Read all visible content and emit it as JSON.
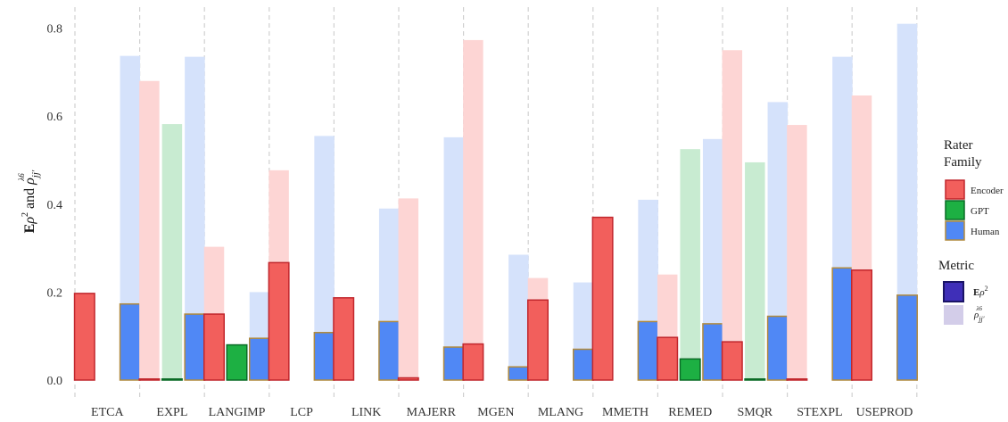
{
  "chart_data": {
    "type": "bar",
    "ylabel": "Eρ² and ρ_jj'^λ6",
    "ylim": [
      0,
      0.83
    ],
    "yticks": [
      "0.0",
      "0.2",
      "0.4",
      "0.6",
      "0.8"
    ],
    "ytick_values": [
      0,
      0.2,
      0.4,
      0.6,
      0.8
    ],
    "categories": [
      "ETCA",
      "EXPL",
      "LANGIMP",
      "LCP",
      "LINK",
      "MAJERR",
      "MGEN",
      "MLANG",
      "MMETH",
      "REMED",
      "SMQR",
      "STEXPL",
      "USEPROD"
    ],
    "series": [
      {
        "name": "Encoder",
        "fill": "#f25f5c",
        "fill_light": "#fdd5d4",
        "stroke": "#c1272d",
        "erho2": [
          0.197,
          0.0,
          0.15,
          0.267,
          0.187,
          0.005,
          0.082,
          0.182,
          0.37,
          0.097,
          0.087,
          0.0,
          0.25
        ],
        "rho": [
          null,
          0.68,
          0.303,
          0.477,
          null,
          0.413,
          0.773,
          0.232,
          null,
          0.24,
          0.75,
          0.58,
          0.647
        ]
      },
      {
        "name": "GPT",
        "fill": "#1db043",
        "fill_light": "#c8ebd1",
        "stroke": "#0a6b26",
        "erho2": [
          null,
          0.0,
          0.08,
          null,
          null,
          null,
          null,
          null,
          null,
          0.048,
          0.0,
          null,
          null
        ],
        "rho": [
          null,
          0.582,
          null,
          null,
          null,
          null,
          null,
          null,
          null,
          0.525,
          0.495,
          null,
          null
        ]
      },
      {
        "name": "Human",
        "fill": "#5088f5",
        "fill_light": "#d5e2fb",
        "stroke": "#b08a3e",
        "erho2": [
          0.173,
          0.15,
          0.095,
          0.108,
          0.133,
          0.075,
          0.03,
          0.07,
          0.133,
          0.128,
          0.145,
          0.255,
          0.193
        ],
        "rho": [
          0.737,
          0.735,
          0.2,
          0.555,
          0.39,
          0.552,
          0.285,
          0.222,
          0.41,
          0.548,
          0.632,
          0.735,
          0.81
        ]
      }
    ],
    "legend": {
      "placement": "right",
      "rater_title": "Rater\nFamily",
      "metric_title": "Metric",
      "metric_items": [
        {
          "name": "Eρ²",
          "fill": "#3f2fb8",
          "stroke": "#1a1466"
        },
        {
          "name": "ρ_jj'^λ6",
          "fill": "#d3cde9",
          "stroke": "#d3cde9"
        }
      ]
    },
    "grid": "vertical dashed"
  }
}
